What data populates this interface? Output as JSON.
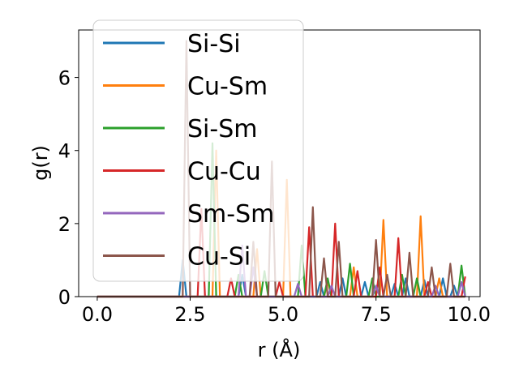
{
  "chart_data": {
    "type": "line",
    "xlabel": "r (Å)",
    "ylabel": "g(r)",
    "xlim": [
      -0.5,
      10.3
    ],
    "ylim": [
      0,
      7.3
    ],
    "xticks": [
      0.0,
      2.5,
      5.0,
      7.5,
      10.0
    ],
    "xtick_labels": [
      "0.0",
      "2.5",
      "5.0",
      "7.5",
      "10.0"
    ],
    "yticks": [
      0,
      2,
      4,
      6
    ],
    "ytick_labels": [
      "0",
      "2",
      "4",
      "6"
    ],
    "legend_position": "upper-left",
    "grid": false,
    "series": [
      {
        "name": "Si-Si",
        "color": "#1f77b4",
        "peaks": [
          [
            2.3,
            1.0
          ],
          [
            3.9,
            0.6
          ],
          [
            6.0,
            0.4
          ],
          [
            6.6,
            0.5
          ],
          [
            7.2,
            0.4
          ],
          [
            8.0,
            0.35
          ],
          [
            8.3,
            0.5
          ],
          [
            8.8,
            0.45
          ],
          [
            9.3,
            0.5
          ],
          [
            9.6,
            0.3
          ]
        ]
      },
      {
        "name": "Cu-Sm",
        "color": "#ff7f0e",
        "peaks": [
          [
            3.2,
            4.0
          ],
          [
            4.3,
            1.3
          ],
          [
            5.1,
            3.2
          ],
          [
            6.2,
            0.4
          ],
          [
            6.9,
            0.8
          ],
          [
            7.7,
            2.1
          ],
          [
            8.7,
            2.2
          ],
          [
            9.2,
            0.5
          ]
        ]
      },
      {
        "name": "Si-Sm",
        "color": "#2ca02c",
        "peaks": [
          [
            3.1,
            4.2
          ],
          [
            3.8,
            0.6
          ],
          [
            4.5,
            0.7
          ],
          [
            5.5,
            1.4
          ],
          [
            6.2,
            0.5
          ],
          [
            6.8,
            0.9
          ],
          [
            7.4,
            0.5
          ],
          [
            8.2,
            0.6
          ],
          [
            8.6,
            0.5
          ],
          [
            9.8,
            0.85
          ]
        ]
      },
      {
        "name": "Cu-Cu",
        "color": "#d62728",
        "peaks": [
          [
            2.8,
            2.4
          ],
          [
            3.6,
            0.5
          ],
          [
            4.9,
            0.4
          ],
          [
            5.7,
            1.9
          ],
          [
            6.4,
            2.0
          ],
          [
            7.0,
            0.7
          ],
          [
            7.6,
            0.8
          ],
          [
            8.1,
            1.6
          ],
          [
            8.9,
            0.4
          ],
          [
            9.9,
            0.55
          ]
        ]
      },
      {
        "name": "Sm-Sm",
        "color": "#9467bd",
        "peaks": [
          [
            3.9,
            1.4
          ],
          [
            4.2,
            0.8
          ],
          [
            5.4,
            0.35
          ],
          [
            6.3,
            0.3
          ],
          [
            7.5,
            0.3
          ],
          [
            9.1,
            0.3
          ],
          [
            9.8,
            0.4
          ]
        ]
      },
      {
        "name": "Cu-Si",
        "color": "#8c564b",
        "peaks": [
          [
            2.4,
            7.0
          ],
          [
            4.2,
            1.5
          ],
          [
            4.7,
            3.7
          ],
          [
            5.8,
            2.45
          ],
          [
            6.1,
            1.05
          ],
          [
            6.5,
            1.5
          ],
          [
            7.5,
            1.55
          ],
          [
            7.8,
            0.6
          ],
          [
            8.4,
            1.2
          ],
          [
            9.0,
            0.8
          ],
          [
            9.5,
            0.9
          ]
        ]
      }
    ]
  }
}
